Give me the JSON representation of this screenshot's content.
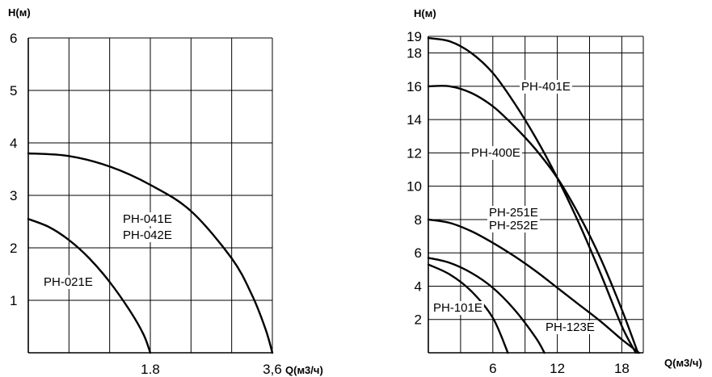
{
  "chart_data": [
    {
      "type": "line",
      "ylabel": "H(м)",
      "xlabel": "Q(м3/ч)",
      "x_ticks": [
        "1.8",
        "3,6"
      ],
      "y_ticks": [
        "1",
        "2",
        "3",
        "4",
        "5",
        "6"
      ],
      "xlim": [
        0,
        3.6
      ],
      "ylim": [
        0,
        6
      ],
      "grid": true,
      "series": [
        {
          "name": "PH-041E PH-042E",
          "labels": [
            "PH-041E",
            "PH-042E"
          ],
          "x": [
            0,
            0.6,
            1.2,
            1.8,
            2.4,
            3.0,
            3.3,
            3.5,
            3.6
          ],
          "y": [
            3.8,
            3.75,
            3.55,
            3.2,
            2.7,
            1.8,
            1.1,
            0.45,
            0
          ]
        },
        {
          "name": "PH-021E",
          "labels": [
            "PH-021E"
          ],
          "x": [
            0,
            0.3,
            0.6,
            0.9,
            1.2,
            1.5,
            1.7,
            1.8
          ],
          "y": [
            2.55,
            2.4,
            2.15,
            1.8,
            1.35,
            0.8,
            0.35,
            0
          ]
        }
      ]
    },
    {
      "type": "line",
      "ylabel": "H(м)",
      "xlabel": "Q(м3/ч)",
      "x_ticks": [
        "6",
        "12",
        "18"
      ],
      "y_ticks": [
        "2",
        "4",
        "6",
        "8",
        "10",
        "12",
        "14",
        "16",
        "18",
        "19"
      ],
      "xlim": [
        0,
        20
      ],
      "ylim": [
        0,
        19
      ],
      "grid": true,
      "series": [
        {
          "name": "PH-401E",
          "labels": [
            "PH-401E"
          ],
          "x": [
            0,
            2,
            4,
            6,
            8,
            10,
            12,
            14,
            16,
            18,
            19.3
          ],
          "y": [
            18.9,
            18.7,
            18.0,
            16.8,
            15.0,
            12.9,
            10.5,
            7.8,
            4.8,
            1.6,
            0
          ]
        },
        {
          "name": "PH-400E",
          "labels": [
            "PH-400E"
          ],
          "x": [
            0,
            2,
            4,
            6,
            8,
            10,
            12,
            14,
            16,
            18,
            19.5
          ],
          "y": [
            16.0,
            16.0,
            15.6,
            14.8,
            13.6,
            12.2,
            10.5,
            8.3,
            5.7,
            2.6,
            0
          ]
        },
        {
          "name": "PH-251E PH-252E",
          "labels": [
            "PH-251E",
            "PH-252E"
          ],
          "x": [
            0,
            2,
            4,
            6,
            8,
            10,
            12,
            14,
            16,
            18,
            19.6
          ],
          "y": [
            8.0,
            7.8,
            7.3,
            6.6,
            5.8,
            4.9,
            3.9,
            2.9,
            1.9,
            0.8,
            0
          ]
        },
        {
          "name": "PH-123E",
          "labels": [
            "PH-123E"
          ],
          "x": [
            0,
            2,
            4,
            6,
            8,
            10,
            10.8
          ],
          "y": [
            5.7,
            5.4,
            4.8,
            3.9,
            2.6,
            0.9,
            0
          ]
        },
        {
          "name": "PH-101E",
          "labels": [
            "PH-101E"
          ],
          "x": [
            0,
            2,
            4,
            6,
            7.4
          ],
          "y": [
            5.3,
            4.7,
            3.7,
            2.1,
            0
          ]
        }
      ]
    }
  ]
}
